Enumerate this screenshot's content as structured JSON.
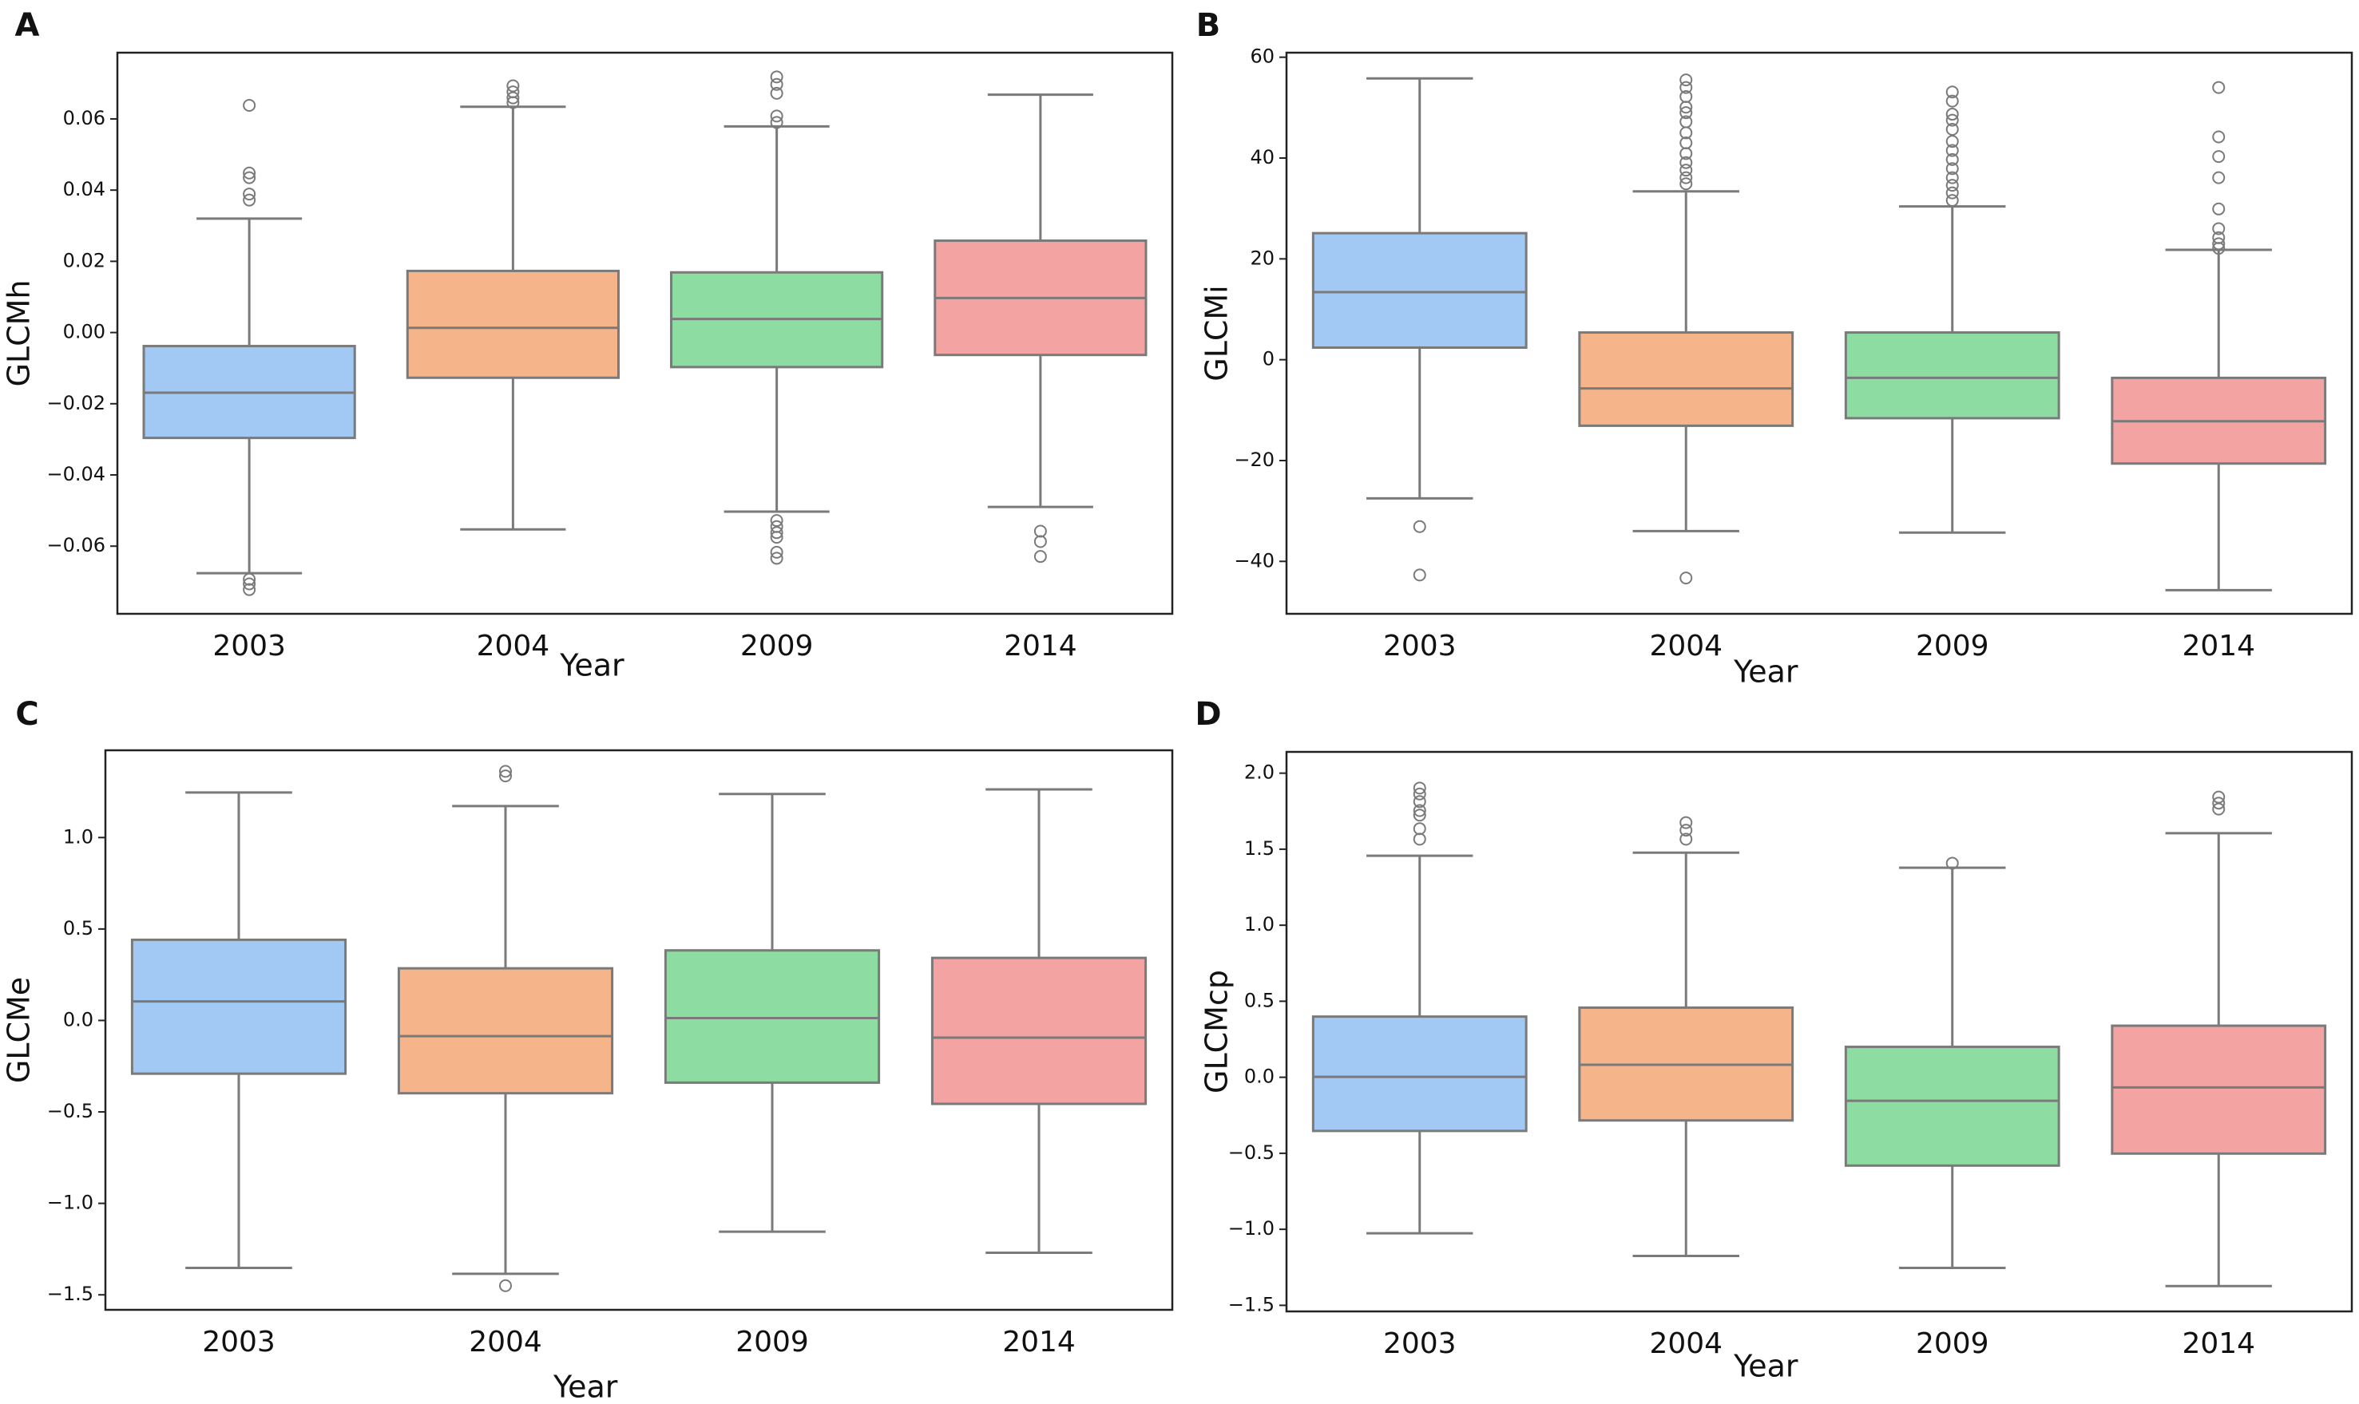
{
  "chart_data": [
    {
      "type": "box",
      "panel": "A",
      "y_label": "GLCMh",
      "x_label": "Year",
      "categories": [
        "2003",
        "2004",
        "2009",
        "2014"
      ],
      "colors": [
        "#a1c9f4",
        "#f5b48a",
        "#8ddca1",
        "#f4a3a3"
      ],
      "ylim": [
        -0.079,
        0.0786
      ],
      "yticks": [
        0.06,
        0.04,
        0.02,
        {
          "value": 0,
          "label": "0.00"
        },
        {
          "value": -0.02,
          "label": "−0.02"
        },
        {
          "value": -0.04,
          "label": "−0.04"
        },
        {
          "value": -0.06,
          "label": "−0.06"
        }
      ],
      "boxes": [
        {
          "low": -0.0676,
          "q1": -0.0296,
          "median": -0.0169,
          "q3": -0.0038,
          "high": 0.032,
          "outliers": [
            0.0638,
            0.0448,
            0.0435,
            0.0389,
            0.0372,
            -0.0693,
            -0.0706,
            -0.0722
          ]
        },
        {
          "low": -0.0553,
          "q1": -0.0127,
          "median": 0.0013,
          "q3": 0.0173,
          "high": 0.0634,
          "outliers": [
            0.0693,
            0.0676,
            0.0659,
            0.0646
          ]
        },
        {
          "low": -0.0503,
          "q1": -0.0097,
          "median": 0.0038,
          "q3": 0.0169,
          "high": 0.0579,
          "outliers": [
            0.0718,
            0.0697,
            0.0672,
            0.0608,
            0.059,
            -0.0528,
            -0.0545,
            -0.0562,
            -0.0575,
            -0.0617,
            -0.0634
          ]
        },
        {
          "low": -0.049,
          "q1": -0.0063,
          "median": 0.0097,
          "q3": 0.0258,
          "high": 0.0668,
          "outliers": [
            -0.0558,
            -0.0587,
            -0.0629
          ]
        }
      ]
    },
    {
      "type": "box",
      "panel": "B",
      "y_label": "GLCMi",
      "x_label": "Year",
      "categories": [
        "2003",
        "2004",
        "2009",
        "2014"
      ],
      "colors": [
        "#a1c9f4",
        "#f5b48a",
        "#8ddca1",
        "#f4a3a3"
      ],
      "ylim": [
        -50.4,
        60.9
      ],
      "yticks": [
        60,
        40,
        20,
        0,
        {
          "value": -20,
          "label": "−20"
        },
        {
          "value": -40,
          "label": "−40"
        }
      ],
      "boxes": [
        {
          "low": -27.5,
          "q1": 2.4,
          "median": 13.4,
          "q3": 25.1,
          "high": 55.8,
          "outliers": [
            -33.1,
            -42.7
          ]
        },
        {
          "low": -34.0,
          "q1": -13.1,
          "median": -5.7,
          "q3": 5.4,
          "high": 33.4,
          "outliers": [
            55.5,
            54,
            52.2,
            50.1,
            49,
            47.2,
            45,
            43,
            40.9,
            39.1,
            37.6,
            36.1,
            34.9,
            -43.3
          ]
        },
        {
          "low": -34.3,
          "q1": -11.6,
          "median": -3.6,
          "q3": 5.4,
          "high": 30.4,
          "outliers": [
            53.1,
            51.3,
            48.7,
            47.5,
            45.7,
            43.3,
            41.5,
            39.7,
            37.9,
            36.1,
            34.6,
            33.1,
            31.6
          ]
        },
        {
          "low": -45.7,
          "q1": -20.6,
          "median": -12.2,
          "q3": -3.6,
          "high": 21.8,
          "outliers": [
            54,
            44.2,
            40.3,
            36.1,
            29.9,
            26,
            24.2,
            23,
            22.1
          ]
        }
      ]
    },
    {
      "type": "box",
      "panel": "C",
      "y_label": "GLCMe",
      "x_label": "Year",
      "categories": [
        "2003",
        "2004",
        "2009",
        "2014"
      ],
      "colors": [
        "#a1c9f4",
        "#f5b48a",
        "#8ddca1",
        "#f4a3a3"
      ],
      "ylim": [
        -1.582,
        1.477
      ],
      "yticks": [
        {
          "value": 1,
          "label": "1.0"
        },
        0.5,
        {
          "value": 0,
          "label": "0.0"
        },
        {
          "value": -0.5,
          "label": "−0.5"
        },
        {
          "value": -1,
          "label": "−1.0"
        },
        {
          "value": -1.5,
          "label": "−1.5"
        }
      ],
      "boxes": [
        {
          "low": -1.353,
          "q1": -0.291,
          "median": 0.104,
          "q3": 0.441,
          "high": 1.246,
          "outliers": []
        },
        {
          "low": -1.385,
          "q1": -0.398,
          "median": -0.086,
          "q3": 0.285,
          "high": 1.172,
          "outliers": [
            1.362,
            1.337,
            -1.45
          ]
        },
        {
          "low": -1.155,
          "q1": -0.34,
          "median": 0.013,
          "q3": 0.383,
          "high": 1.238,
          "outliers": []
        },
        {
          "low": -1.27,
          "q1": -0.456,
          "median": -0.094,
          "q3": 0.342,
          "high": 1.263,
          "outliers": []
        }
      ]
    },
    {
      "type": "box",
      "panel": "D",
      "y_label": "GLCMcp",
      "x_label": "Year",
      "categories": [
        "2003",
        "2004",
        "2009",
        "2014"
      ],
      "colors": [
        "#a1c9f4",
        "#f5b48a",
        "#8ddca1",
        "#f4a3a3"
      ],
      "ylim": [
        -1.54,
        2.14
      ],
      "yticks": [
        {
          "value": 2,
          "label": "2.0"
        },
        1.5,
        {
          "value": 1,
          "label": "1.0"
        },
        0.5,
        {
          "value": 0,
          "label": "0.0"
        },
        {
          "value": -0.5,
          "label": "−0.5"
        },
        {
          "value": -1,
          "label": "−1.0"
        },
        {
          "value": -1.5,
          "label": "−1.5"
        }
      ],
      "boxes": [
        {
          "low": -1.026,
          "q1": -0.353,
          "median": 0.003,
          "q3": 0.399,
          "high": 1.457,
          "outliers": [
            1.902,
            1.863,
            1.813,
            1.754,
            1.724,
            1.635,
            1.566
          ]
        },
        {
          "low": -1.175,
          "q1": -0.284,
          "median": 0.082,
          "q3": 0.458,
          "high": 1.477,
          "outliers": [
            1.675,
            1.625,
            1.566
          ]
        },
        {
          "low": -1.254,
          "q1": -0.581,
          "median": -0.155,
          "q3": 0.2,
          "high": 1.378,
          "outliers": [
            1.408
          ]
        },
        {
          "low": -1.373,
          "q1": -0.502,
          "median": -0.067,
          "q3": 0.339,
          "high": 1.605,
          "outliers": [
            1.843,
            1.803,
            1.764
          ]
        }
      ]
    }
  ]
}
